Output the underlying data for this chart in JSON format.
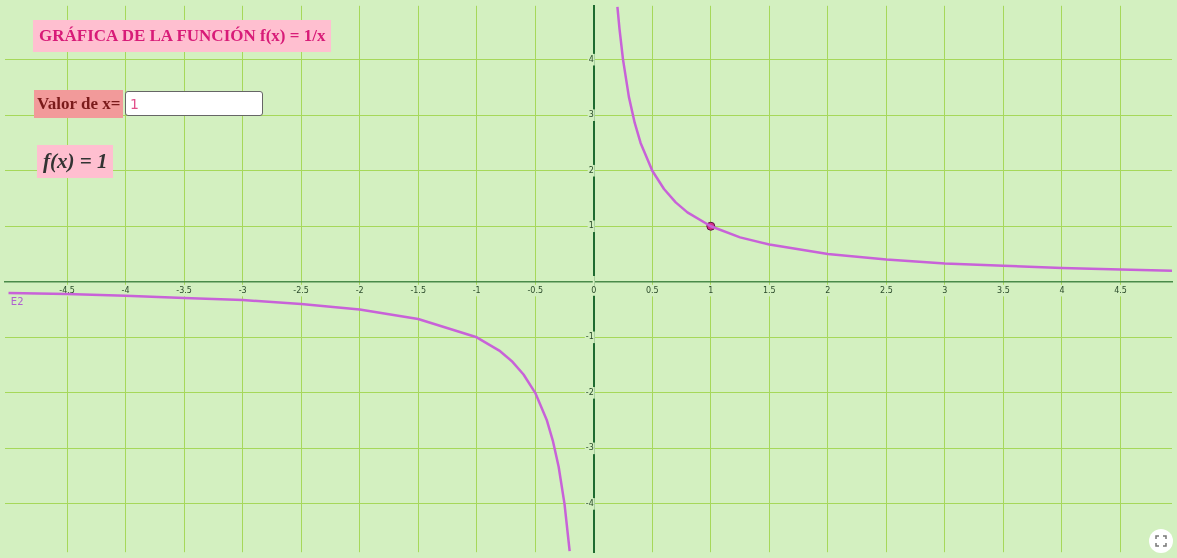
{
  "chart_data": {
    "type": "line",
    "title": "GRÁFICA DE LA FUNCIÓN f(x) = 1/x",
    "xlim": [
      -5.03,
      4.94
    ],
    "ylim": [
      -4.87,
      4.97
    ],
    "xticks": [
      -4.5,
      -4,
      -3.5,
      -3,
      -2.5,
      -2,
      -1.5,
      -1,
      -0.5,
      0,
      0.5,
      1,
      1.5,
      2,
      2.5,
      3,
      3.5,
      4,
      4.5
    ],
    "yticks": [
      -4,
      -3,
      -2,
      -1,
      {
        "value": 0,
        "label": null
      },
      1,
      2,
      3,
      4
    ],
    "grid": true,
    "legend": false,
    "marker": "none",
    "line_style": "solid",
    "series": [
      {
        "color": "#c862d8",
        "x": [
          0.202,
          0.22,
          0.25,
          0.3,
          0.35,
          0.4,
          0.5,
          0.6,
          0.7,
          0.8,
          1,
          1.25,
          1.5,
          2,
          2.5,
          3,
          3.5,
          4,
          4.5,
          4.94
        ],
        "values": [
          4.95,
          4.55,
          4,
          3.33,
          2.86,
          2.5,
          2,
          1.67,
          1.43,
          1.25,
          1,
          0.8,
          0.67,
          0.5,
          0.4,
          0.33,
          0.29,
          0.25,
          0.22,
          0.2
        ]
      },
      {
        "color": "#c862d8",
        "x": [
          -5,
          -4.5,
          -4,
          -3.5,
          -3,
          -2.5,
          -2,
          -1.5,
          -1,
          -0.8,
          -0.7,
          -0.6,
          -0.5,
          -0.4,
          -0.35,
          -0.3,
          -0.25,
          -0.206
        ],
        "values": [
          -0.2,
          -0.22,
          -0.25,
          -0.29,
          -0.33,
          -0.4,
          -0.5,
          -0.67,
          -1,
          -1.25,
          -1.43,
          -1.67,
          -2,
          -2.5,
          -2.86,
          -3.33,
          -4,
          -4.85
        ]
      },
      {
        "type": "scatter",
        "color": "#d6338c",
        "marker": "circle",
        "x": [
          1
        ],
        "values": [
          1
        ]
      }
    ],
    "annotations": [
      "Valor de x=",
      "1",
      "f(x) = 1",
      {
        "text": "E2",
        "x": -4.98,
        "y": -0.3
      }
    ]
  }
}
